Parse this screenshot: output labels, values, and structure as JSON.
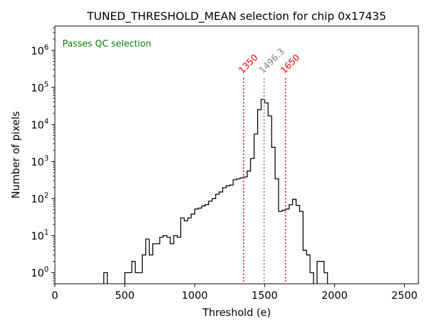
{
  "chart_data": {
    "type": "histogram",
    "title": "TUNED_THRESHOLD_MEAN selection for chip 0x17435",
    "xlabel": "Threshold (e)",
    "ylabel": "Number of pixels",
    "xlim": [
      0,
      2600
    ],
    "ylim": [
      0.5,
      4500000
    ],
    "y_scale": "log",
    "x_ticks": [
      0,
      500,
      1000,
      1500,
      2000,
      2500
    ],
    "x_tick_labels": [
      "0",
      "500",
      "1000",
      "1500",
      "2000",
      "2500"
    ],
    "y_ticks": [
      1,
      10,
      100,
      1000,
      10000,
      100000,
      1000000
    ],
    "y_tick_labels": [
      {
        "base": "10",
        "exp": "0"
      },
      {
        "base": "10",
        "exp": "1"
      },
      {
        "base": "10",
        "exp": "2"
      },
      {
        "base": "10",
        "exp": "3"
      },
      {
        "base": "10",
        "exp": "4"
      },
      {
        "base": "10",
        "exp": "5"
      },
      {
        "base": "10",
        "exp": "6"
      }
    ],
    "bin_width": 25,
    "bins": [
      {
        "x": 350,
        "y": 1
      },
      {
        "x": 375,
        "y": 0
      },
      {
        "x": 400,
        "y": 0
      },
      {
        "x": 425,
        "y": 0
      },
      {
        "x": 450,
        "y": 0
      },
      {
        "x": 475,
        "y": 0
      },
      {
        "x": 500,
        "y": 1
      },
      {
        "x": 525,
        "y": 1
      },
      {
        "x": 550,
        "y": 2
      },
      {
        "x": 575,
        "y": 1
      },
      {
        "x": 600,
        "y": 1
      },
      {
        "x": 625,
        "y": 3
      },
      {
        "x": 650,
        "y": 8
      },
      {
        "x": 675,
        "y": 3
      },
      {
        "x": 700,
        "y": 6
      },
      {
        "x": 725,
        "y": 6
      },
      {
        "x": 750,
        "y": 9
      },
      {
        "x": 775,
        "y": 10
      },
      {
        "x": 800,
        "y": 9
      },
      {
        "x": 825,
        "y": 6
      },
      {
        "x": 850,
        "y": 10
      },
      {
        "x": 875,
        "y": 9
      },
      {
        "x": 900,
        "y": 30
      },
      {
        "x": 925,
        "y": 25
      },
      {
        "x": 950,
        "y": 30
      },
      {
        "x": 975,
        "y": 38
      },
      {
        "x": 1000,
        "y": 52
      },
      {
        "x": 1025,
        "y": 55
      },
      {
        "x": 1050,
        "y": 63
      },
      {
        "x": 1075,
        "y": 68
      },
      {
        "x": 1100,
        "y": 85
      },
      {
        "x": 1125,
        "y": 100
      },
      {
        "x": 1150,
        "y": 130
      },
      {
        "x": 1175,
        "y": 150
      },
      {
        "x": 1200,
        "y": 195
      },
      {
        "x": 1225,
        "y": 220
      },
      {
        "x": 1250,
        "y": 230
      },
      {
        "x": 1275,
        "y": 320
      },
      {
        "x": 1300,
        "y": 340
      },
      {
        "x": 1325,
        "y": 360
      },
      {
        "x": 1350,
        "y": 380
      },
      {
        "x": 1375,
        "y": 550
      },
      {
        "x": 1400,
        "y": 1200
      },
      {
        "x": 1425,
        "y": 5500
      },
      {
        "x": 1450,
        "y": 25000
      },
      {
        "x": 1475,
        "y": 47000
      },
      {
        "x": 1500,
        "y": 38000
      },
      {
        "x": 1525,
        "y": 17000
      },
      {
        "x": 1550,
        "y": 2400
      },
      {
        "x": 1575,
        "y": 340
      },
      {
        "x": 1600,
        "y": 45
      },
      {
        "x": 1625,
        "y": 48
      },
      {
        "x": 1650,
        "y": 52
      },
      {
        "x": 1675,
        "y": 68
      },
      {
        "x": 1700,
        "y": 95
      },
      {
        "x": 1725,
        "y": 65
      },
      {
        "x": 1750,
        "y": 45
      },
      {
        "x": 1775,
        "y": 4
      },
      {
        "x": 1800,
        "y": 3
      },
      {
        "x": 1825,
        "y": 1
      },
      {
        "x": 1850,
        "y": 0
      },
      {
        "x": 1875,
        "y": 2
      },
      {
        "x": 1900,
        "y": 2
      },
      {
        "x": 1925,
        "y": 1
      }
    ],
    "vlines": [
      {
        "x": 1350,
        "label": "1350",
        "color": "#ff0000"
      },
      {
        "x": 1496.3,
        "label": "1496.3",
        "color": "#808080"
      },
      {
        "x": 1650,
        "label": "1650",
        "color": "#ff0000"
      }
    ],
    "annotation": {
      "text": "Passes QC selection",
      "color": "#008000"
    },
    "grid": false,
    "line_color": "#000000"
  }
}
